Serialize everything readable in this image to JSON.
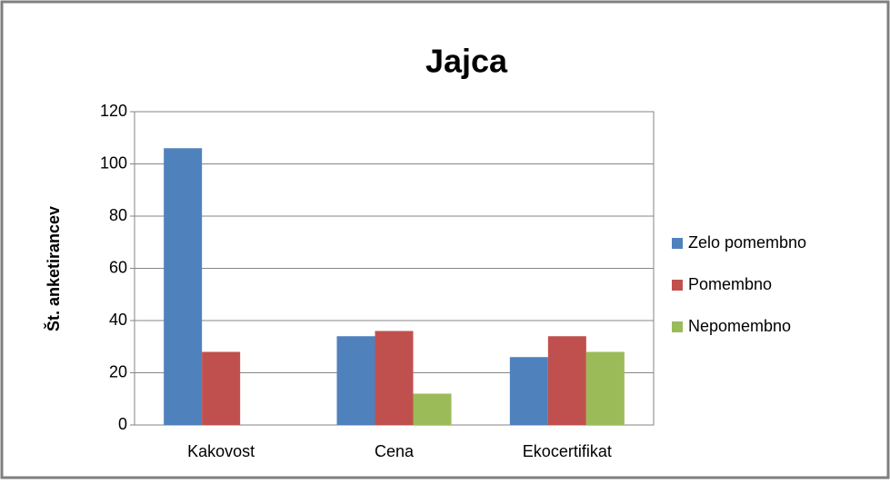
{
  "chart_data": {
    "type": "bar",
    "title": "Jajca",
    "y_label": "Št. anketirancev",
    "categories": [
      "Kakovost",
      "Cena",
      "Ekocertifikat"
    ],
    "series": [
      {
        "name": "Zelo pomembno",
        "color": "#4f81bd",
        "values": [
          106,
          34,
          26
        ]
      },
      {
        "name": "Pomembno",
        "color": "#c0504d",
        "values": [
          28,
          36,
          34
        ]
      },
      {
        "name": "Nepomembno",
        "color": "#9bbb59",
        "values": [
          0,
          12,
          28
        ]
      }
    ],
    "ylim": [
      0,
      120
    ],
    "yticks": [
      0,
      20,
      40,
      60,
      80,
      100,
      120
    ],
    "grid": true,
    "legend": "right"
  }
}
